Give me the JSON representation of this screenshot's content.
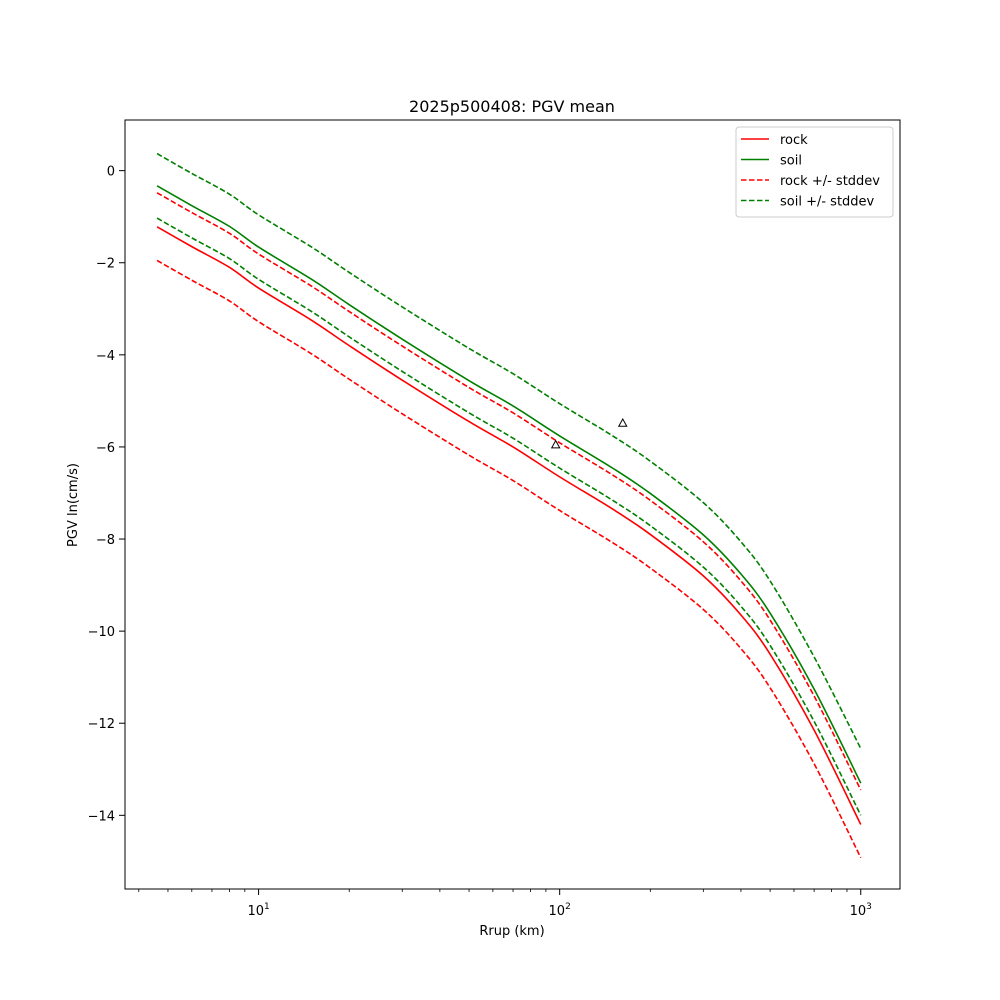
{
  "chart_data": {
    "type": "line",
    "title": "2025p500408: PGV mean",
    "xlabel": "Rrup (km)",
    "ylabel": "PGV ln(cm/s)",
    "xscale": "log",
    "xlim": [
      3.6,
      1350
    ],
    "ylim": [
      -15.6,
      1.1
    ],
    "grid": false,
    "legend_position": "top-right",
    "x_ticks": [
      {
        "base": "10",
        "exp": "1",
        "value": 10
      },
      {
        "base": "10",
        "exp": "2",
        "value": 100
      },
      {
        "base": "10",
        "exp": "3",
        "value": 1000
      }
    ],
    "y_ticks": [
      {
        "value": 0,
        "label": "0"
      },
      {
        "value": -2,
        "label": "−2"
      },
      {
        "value": -4,
        "label": "−4"
      },
      {
        "value": -6,
        "label": "−6"
      },
      {
        "value": -8,
        "label": "−8"
      },
      {
        "value": -10,
        "label": "−10"
      },
      {
        "value": -12,
        "label": "−12"
      },
      {
        "value": -14,
        "label": "−14"
      }
    ],
    "x": [
      4.6,
      6,
      8,
      10,
      15,
      20,
      30,
      50,
      70,
      100,
      150,
      200,
      300,
      400,
      500,
      700,
      1000
    ],
    "series": [
      {
        "name": "rock",
        "color": "#ff0000",
        "dash": "solid",
        "legend": true,
        "values": [
          -1.22,
          -1.65,
          -2.1,
          -2.55,
          -3.25,
          -3.8,
          -4.55,
          -5.45,
          -6.0,
          -6.65,
          -7.35,
          -7.9,
          -8.8,
          -9.65,
          -10.5,
          -12.15,
          -14.2
        ]
      },
      {
        "name": "soil",
        "color": "#008000",
        "dash": "solid",
        "legend": true,
        "values": [
          -0.33,
          -0.76,
          -1.21,
          -1.66,
          -2.36,
          -2.91,
          -3.66,
          -4.56,
          -5.11,
          -5.76,
          -6.46,
          -7.01,
          -7.91,
          -8.76,
          -9.61,
          -11.26,
          -13.3
        ]
      },
      {
        "name": "rock +/- stddev",
        "color": "#ff0000",
        "dash": "dashed",
        "legend": true,
        "values": [
          -0.48,
          -0.91,
          -1.36,
          -1.81,
          -2.51,
          -3.06,
          -3.81,
          -4.71,
          -5.26,
          -5.91,
          -6.61,
          -7.16,
          -8.06,
          -8.91,
          -9.76,
          -11.41,
          -13.45
        ]
      },
      {
        "name": "",
        "color": "#ff0000",
        "dash": "dashed",
        "legend": false,
        "values": [
          -1.95,
          -2.38,
          -2.83,
          -3.28,
          -3.98,
          -4.53,
          -5.28,
          -6.18,
          -6.73,
          -7.38,
          -8.08,
          -8.63,
          -9.53,
          -10.38,
          -11.23,
          -12.88,
          -14.92
        ]
      },
      {
        "name": "soil +/- stddev",
        "color": "#008000",
        "dash": "dashed",
        "legend": true,
        "values": [
          0.37,
          -0.06,
          -0.51,
          -0.96,
          -1.66,
          -2.21,
          -2.96,
          -3.86,
          -4.41,
          -5.06,
          -5.76,
          -6.31,
          -7.21,
          -8.06,
          -8.91,
          -10.56,
          -12.55
        ]
      },
      {
        "name": "",
        "color": "#008000",
        "dash": "dashed",
        "legend": false,
        "values": [
          -1.03,
          -1.46,
          -1.91,
          -2.36,
          -3.06,
          -3.61,
          -4.36,
          -5.26,
          -5.81,
          -6.46,
          -7.16,
          -7.71,
          -8.61,
          -9.46,
          -10.31,
          -11.96,
          -14.0
        ]
      }
    ],
    "observations": [
      {
        "x": 97,
        "y": -5.95,
        "marker": "triangle-open"
      },
      {
        "x": 162,
        "y": -5.48,
        "marker": "triangle-open"
      }
    ]
  }
}
